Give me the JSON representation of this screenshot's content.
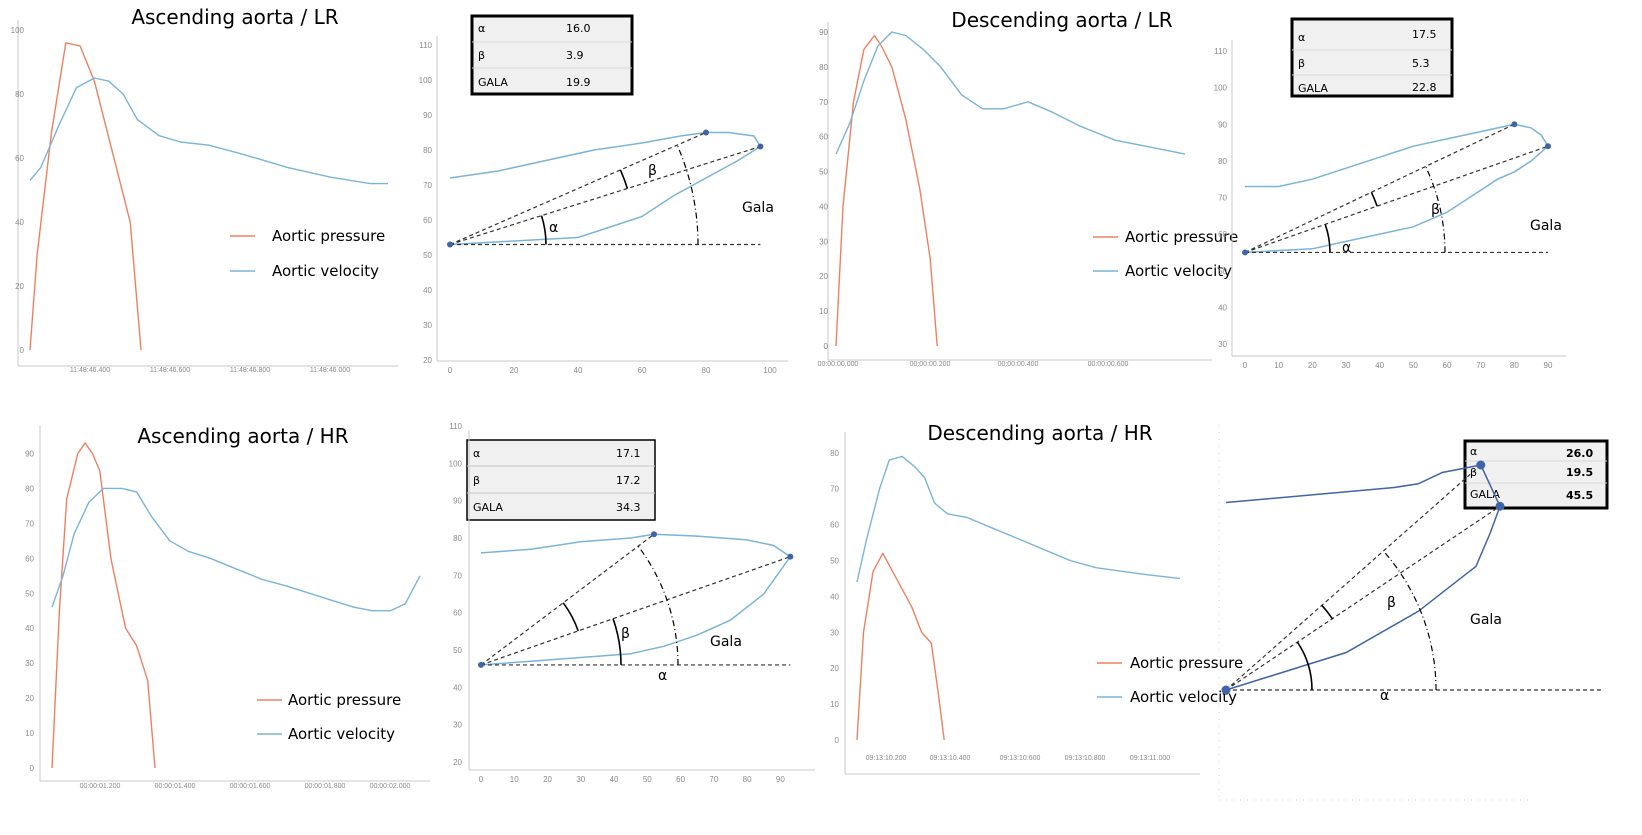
{
  "colors": {
    "pressure": "#ee8060",
    "velocity": "#7ab4d8",
    "point": "#3f64a8",
    "axis": "#c8c8c8"
  },
  "panels": [
    {
      "title": "Ascending aorta / LR",
      "legend": [
        "Aortic pressure",
        "Aortic velocity"
      ],
      "time_chart": {
        "type": "line",
        "y_ticks": [
          "0",
          "20",
          "40",
          "60",
          "80",
          "100"
        ],
        "x_ticks": [
          "11:48:46.400",
          "11:48:46.600",
          "11:48:46.800",
          "11:48:46.000"
        ],
        "series": [
          {
            "name": "Aortic pressure",
            "x": [
              0.0,
              0.02,
              0.06,
              0.1,
              0.14,
              0.18,
              0.23,
              0.28,
              0.31
            ],
            "y": [
              0,
              30,
              68,
              96,
              95,
              84,
              62,
              40,
              0
            ]
          },
          {
            "name": "Aortic velocity",
            "x": [
              0.0,
              0.03,
              0.08,
              0.13,
              0.18,
              0.22,
              0.26,
              0.3,
              0.36,
              0.42,
              0.5,
              0.6,
              0.72,
              0.84,
              0.95,
              1.0
            ],
            "y": [
              53,
              57,
              70,
              82,
              85,
              84,
              80,
              72,
              67,
              65,
              64,
              61,
              57,
              54,
              52,
              52
            ]
          }
        ]
      },
      "gala_chart": {
        "type": "line",
        "x_ticks": [
          "0",
          "20",
          "40",
          "60",
          "80",
          "100"
        ],
        "y_ticks": [
          "20",
          "30",
          "40",
          "50",
          "60",
          "70",
          "80",
          "90",
          "100",
          "110"
        ],
        "upper": {
          "x": [
            0,
            15,
            30,
            45,
            60,
            72,
            80,
            87,
            95,
            97
          ],
          "y": [
            72,
            74,
            77,
            80,
            82,
            84,
            85,
            85,
            84,
            81
          ]
        },
        "lower": {
          "x": [
            0,
            20,
            40,
            50,
            60,
            70,
            80,
            90,
            97
          ],
          "y": [
            53,
            54,
            55,
            58,
            61,
            67,
            72,
            77,
            81
          ]
        },
        "labels": {
          "alpha": "α",
          "beta": "β",
          "gala": "Gala"
        },
        "table": [
          {
            "label": "α",
            "value": "16.0"
          },
          {
            "label": "β",
            "value": "3.9"
          },
          {
            "label": "GALA",
            "value": "19.9"
          }
        ]
      }
    },
    {
      "title": "Descending aorta / LR",
      "legend": [
        "Aortic pressure",
        "Aortic velocity"
      ],
      "time_chart": {
        "type": "line",
        "y_ticks": [
          "0",
          "10",
          "20",
          "30",
          "40",
          "50",
          "60",
          "70",
          "80",
          "90"
        ],
        "x_ticks": [
          "00:00:00.000",
          "00:00:00.200",
          "00:00:00.400",
          "00:00:00.600"
        ],
        "series": [
          {
            "name": "Aortic pressure",
            "x": [
              0.0,
              0.02,
              0.05,
              0.08,
              0.11,
              0.13,
              0.16,
              0.2,
              0.24,
              0.27,
              0.29
            ],
            "y": [
              0,
              40,
              70,
              85,
              89,
              86,
              80,
              65,
              45,
              25,
              0
            ]
          },
          {
            "name": "Aortic velocity",
            "x": [
              0.0,
              0.04,
              0.08,
              0.12,
              0.16,
              0.2,
              0.25,
              0.3,
              0.36,
              0.42,
              0.48,
              0.55,
              0.62,
              0.7,
              0.8,
              0.9,
              1.0
            ],
            "y": [
              55,
              64,
              76,
              86,
              90,
              89,
              85,
              80,
              72,
              68,
              68,
              70,
              67,
              63,
              59,
              57,
              55
            ]
          }
        ]
      },
      "gala_chart": {
        "type": "line",
        "x_ticks": [
          "0",
          "10",
          "20",
          "30",
          "40",
          "50",
          "60",
          "70",
          "80",
          "90"
        ],
        "y_ticks": [
          "30",
          "40",
          "50",
          "60",
          "70",
          "80",
          "90",
          "100",
          "110"
        ],
        "upper": {
          "x": [
            0,
            10,
            20,
            30,
            40,
            50,
            60,
            70,
            80,
            85,
            88,
            90
          ],
          "y": [
            73,
            73,
            75,
            78,
            81,
            84,
            86,
            88,
            90,
            89,
            87,
            84
          ]
        },
        "lower": {
          "x": [
            0,
            20,
            30,
            40,
            50,
            60,
            70,
            75,
            80,
            85,
            90
          ],
          "y": [
            55,
            56,
            58,
            60,
            62,
            66,
            72,
            75,
            77,
            80,
            84
          ]
        },
        "labels": {
          "alpha": "α",
          "beta": "β",
          "gala": "Gala"
        },
        "table": [
          {
            "label": "α",
            "value": "17.5"
          },
          {
            "label": "β",
            "value": "5.3"
          },
          {
            "label": "GALA",
            "value": "22.8"
          }
        ]
      }
    },
    {
      "title": "Ascending aorta / HR",
      "legend": [
        "Aortic pressure",
        "Aortic velocity"
      ],
      "time_chart": {
        "type": "line",
        "y_ticks": [
          "0",
          "10",
          "20",
          "30",
          "40",
          "50",
          "60",
          "70",
          "80",
          "90"
        ],
        "x_ticks": [
          "00:00:01.200",
          "00:00:01.400",
          "00:00:01.600",
          "00:00:01.800",
          "00:00:02.000"
        ],
        "series": [
          {
            "name": "Aortic pressure",
            "x": [
              0.0,
              0.02,
              0.04,
              0.07,
              0.09,
              0.11,
              0.13,
              0.16,
              0.18,
              0.2,
              0.23,
              0.26,
              0.28
            ],
            "y": [
              0,
              45,
              77,
              90,
              93,
              90,
              85,
              60,
              50,
              40,
              35,
              25,
              0
            ]
          },
          {
            "name": "Aortic velocity",
            "x": [
              0.0,
              0.03,
              0.06,
              0.1,
              0.14,
              0.19,
              0.23,
              0.27,
              0.32,
              0.37,
              0.43,
              0.5,
              0.57,
              0.64,
              0.7,
              0.76,
              0.82,
              0.87,
              0.92,
              0.96,
              1.0
            ],
            "y": [
              46,
              55,
              67,
              76,
              80,
              80,
              79,
              72,
              65,
              62,
              60,
              57,
              54,
              52,
              50,
              48,
              46,
              45,
              45,
              47,
              55
            ]
          }
        ]
      },
      "gala_chart": {
        "type": "line",
        "x_ticks": [
          "0",
          "10",
          "20",
          "30",
          "40",
          "50",
          "60",
          "70",
          "80",
          "90"
        ],
        "y_ticks": [
          "20",
          "30",
          "40",
          "50",
          "60",
          "70",
          "80",
          "90",
          "100",
          "110"
        ],
        "upper": {
          "x": [
            0,
            15,
            30,
            45,
            52,
            65,
            80,
            88,
            93
          ],
          "y": [
            76,
            77,
            79,
            80,
            81,
            80.5,
            79.5,
            78,
            75
          ]
        },
        "lower": {
          "x": [
            0,
            15,
            30,
            45,
            55,
            65,
            75,
            85,
            93
          ],
          "y": [
            46,
            47,
            48,
            49,
            51,
            54,
            58,
            65,
            75
          ]
        },
        "labels": {
          "alpha": "α",
          "beta": "β",
          "gala": "Gala"
        },
        "table": [
          {
            "label": "α",
            "value": "17.1"
          },
          {
            "label": "β",
            "value": "17.2"
          },
          {
            "label": "GALA",
            "value": "34.3"
          }
        ]
      }
    },
    {
      "title": "Descending aorta / HR",
      "legend": [
        "Aortic pressure",
        "Aortic velocity"
      ],
      "time_chart": {
        "type": "line",
        "y_ticks": [
          "0",
          "10",
          "20",
          "30",
          "40",
          "50",
          "60",
          "70",
          "80"
        ],
        "x_ticks": [
          "09:13:10.200",
          "09:13:10.400",
          "09:13:10.600",
          "09:13:10.800",
          "09:13:11.000"
        ],
        "series": [
          {
            "name": "Aortic pressure",
            "x": [
              0.0,
              0.02,
              0.05,
              0.08,
              0.11,
              0.14,
              0.17,
              0.2,
              0.23,
              0.25,
              0.27
            ],
            "y": [
              0,
              30,
              47,
              52,
              47,
              42,
              37,
              30,
              27,
              14,
              0
            ]
          },
          {
            "name": "Aortic velocity",
            "x": [
              0.0,
              0.03,
              0.07,
              0.1,
              0.14,
              0.18,
              0.21,
              0.24,
              0.28,
              0.34,
              0.42,
              0.5,
              0.58,
              0.66,
              0.74,
              0.82,
              0.9,
              1.0
            ],
            "y": [
              44,
              56,
              70,
              78,
              79,
              76,
              73,
              66,
              63,
              62,
              59,
              56,
              53,
              50,
              48,
              47,
              46,
              45
            ]
          }
        ]
      },
      "gala_chart": {
        "type": "line",
        "upper": {
          "x": [
            0,
            35,
            40,
            45,
            53,
            57
          ],
          "y": [
            70,
            74,
            75,
            78,
            80,
            69
          ]
        },
        "lower": {
          "x": [
            0,
            10,
            25,
            40,
            52,
            55,
            57
          ],
          "y": [
            20,
            24,
            30,
            41,
            53,
            62,
            69
          ]
        },
        "labels": {
          "alpha": "α",
          "beta": "β",
          "gala": "Gala"
        },
        "table": [
          {
            "label": "α",
            "value": "26.0"
          },
          {
            "label": "β",
            "value": "19.5"
          },
          {
            "label": "GALA",
            "value": "45.5"
          }
        ]
      }
    }
  ]
}
